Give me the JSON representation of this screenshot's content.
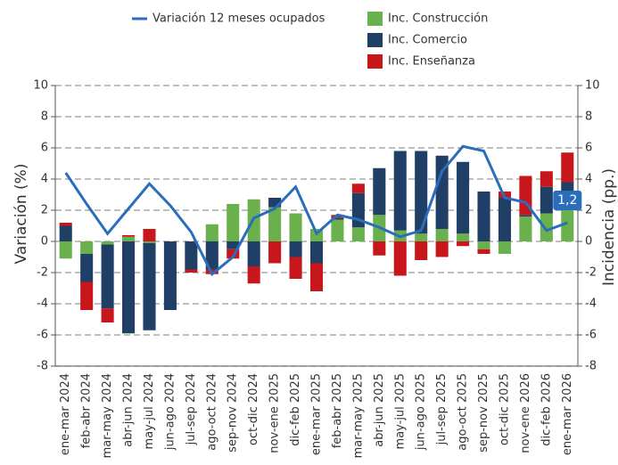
{
  "chart_data": {
    "type": "bar_line",
    "ylabel": "Variación (%)",
    "y2label": "Incidencia (pp.)",
    "categories": [
      "ene-mar 2024",
      "feb-abr 2024",
      "mar-may 2024",
      "abr-jun 2024",
      "may-jul 2024",
      "jun-ago 2024",
      "jul-sep 2024",
      "ago-oct 2024",
      "sep-nov 2024",
      "oct-dic 2024",
      "nov-ene 2025",
      "dic-feb 2025",
      "ene-mar 2025",
      "feb-abr 2025",
      "mar-may 2025",
      "abr-jun 2025",
      "may-jul 2025",
      "jun-ago 2025",
      "jul-sep 2025",
      "ago-oct 2025",
      "sep-nov 2025",
      "oct-dic 2025",
      "nov-ene 2026",
      "dic-feb 2026",
      "ene-mar 2026"
    ],
    "series": [
      {
        "name": "Variación 12 meses ocupados",
        "type": "line",
        "color": "#2a6ebb",
        "values": [
          4.4,
          2.4,
          0.5,
          2.1,
          3.7,
          2.3,
          0.6,
          -2.1,
          -1.0,
          1.5,
          2.1,
          3.5,
          0.5,
          1.7,
          1.4,
          0.9,
          0.3,
          0.7,
          4.5,
          6.1,
          5.8,
          2.8,
          2.5,
          0.7,
          1.2
        ],
        "value_labels": [
          null,
          null,
          null,
          null,
          null,
          null,
          null,
          null,
          null,
          null,
          null,
          null,
          null,
          null,
          null,
          null,
          null,
          null,
          null,
          null,
          null,
          null,
          null,
          null,
          "1,2"
        ]
      },
      {
        "name": "Inc. Construcción",
        "type": "bar",
        "axis": "y2",
        "color": "#6ab04c",
        "values": [
          -1.1,
          -0.8,
          -0.2,
          0.3,
          -0.1,
          0,
          0,
          1.1,
          2.4,
          2.7,
          2.2,
          1.8,
          0.8,
          1.4,
          0.9,
          1.7,
          0.7,
          0.5,
          0.8,
          0.5,
          -0.5,
          -0.8,
          1.6,
          1.8,
          2.0
        ]
      },
      {
        "name": "Inc. Comercio",
        "type": "bar",
        "axis": "y2",
        "color": "#1f3f66",
        "values": [
          1.0,
          -1.8,
          -4.1,
          -5.9,
          -5.6,
          -4.4,
          -1.8,
          -1.8,
          -0.5,
          -1.6,
          0.6,
          -1.0,
          -1.4,
          0.1,
          2.2,
          3.0,
          5.1,
          5.3,
          4.7,
          4.6,
          3.2,
          2.8,
          0.1,
          1.7,
          1.8
        ]
      },
      {
        "name": "Inc. Enseñanza",
        "type": "bar",
        "axis": "y2",
        "color": "#c8161d",
        "values": [
          0.2,
          -1.8,
          -0.9,
          0.1,
          0.8,
          0,
          -0.2,
          -0.3,
          -0.6,
          -1.1,
          -1.4,
          -1.4,
          -1.8,
          0.2,
          0.6,
          -0.9,
          -2.2,
          -1.2,
          -1.0,
          -0.3,
          -0.3,
          0.4,
          2.5,
          1.0,
          1.9
        ]
      }
    ],
    "ylim": [
      -8,
      10
    ],
    "yticks": [
      -8,
      -6,
      -4,
      -2,
      0,
      2,
      4,
      6,
      8,
      10
    ],
    "y2lim": [
      -8,
      10
    ],
    "y2ticks": [
      -8,
      -6,
      -4,
      -2,
      0,
      2,
      4,
      6,
      8,
      10
    ],
    "grid": true,
    "legend": "top"
  }
}
